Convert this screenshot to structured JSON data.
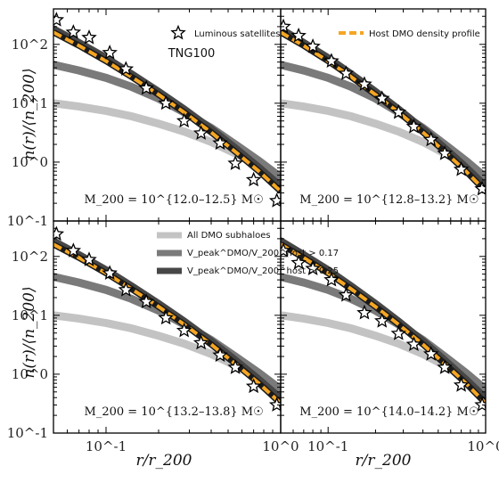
{
  "chart_data": {
    "type": "line",
    "x_scale": "log",
    "y_scale": "log",
    "xlim": [
      0.05,
      1.0
    ],
    "ylim": [
      0.1,
      400
    ],
    "xlabel": "r/r_200",
    "ylabel": "n(r)/⟨n_200⟩",
    "x_tick_labels": [
      "10^-1",
      "10^0"
    ],
    "y_tick_labels": [
      "10^-1",
      "10^0",
      "10^1",
      "10^2"
    ],
    "annotation_text": "TNG100",
    "legend_top_left": [
      {
        "name": "Luminous satellites",
        "style": "star-marker"
      }
    ],
    "legend_top_right": [
      {
        "name": "Host DMO density profile",
        "style": "orange-dashed"
      }
    ],
    "legend_mid": [
      {
        "name": "All DMO subhaloes",
        "style": "light-gray"
      },
      {
        "name": "V_peak^DMO/V_200^host > 0.17",
        "style": "mid-gray"
      },
      {
        "name": "V_peak^DMO/V_200^host > 0.25",
        "style": "dark-gray"
      }
    ],
    "colors": {
      "all_subhaloes": "#c3c3c3",
      "vpeak_017": "#7a7a7a",
      "vpeak_025": "#474747",
      "host_profile": "#f5a623",
      "host_outline": "#1a1a1a"
    },
    "panels": [
      {
        "mass_label": "M_200 = 10^{12.0–12.5} M☉",
        "mass_range": "12.0-12.5",
        "stars": {
          "x": [
            0.052,
            0.065,
            0.08,
            0.105,
            0.13,
            0.17,
            0.22,
            0.28,
            0.35,
            0.45,
            0.55,
            0.7,
            0.95
          ],
          "y": [
            260,
            160,
            130,
            72,
            38,
            18,
            10,
            5,
            3.1,
            2.1,
            0.95,
            0.5,
            0.22
          ]
        }
      },
      {
        "mass_label": "M_200 = 10^{12.8–13.2} M☉",
        "mass_range": "12.8-13.2",
        "stars": {
          "x": [
            0.052,
            0.065,
            0.08,
            0.105,
            0.13,
            0.17,
            0.22,
            0.28,
            0.35,
            0.45,
            0.55,
            0.7,
            0.95
          ],
          "y": [
            200,
            140,
            92,
            52,
            32,
            21,
            12,
            7,
            4,
            2.4,
            1.4,
            0.75,
            0.35
          ]
        }
      },
      {
        "mass_label": "M_200 = 10^{13.2–13.8} M☉",
        "mass_range": "13.2-13.8",
        "stars": {
          "x": [
            0.052,
            0.065,
            0.08,
            0.105,
            0.13,
            0.17,
            0.22,
            0.28,
            0.35,
            0.45,
            0.55,
            0.7,
            0.95
          ],
          "y": [
            240,
            125,
            88,
            52,
            27,
            17,
            9,
            5.5,
            3.4,
            2.1,
            1.3,
            0.62,
            0.3
          ]
        }
      },
      {
        "mass_label": "M_200 = 10^{14.0–14.2} M☉",
        "mass_range": "14.0-14.2",
        "stars": {
          "x": [
            0.052,
            0.065,
            0.08,
            0.105,
            0.13,
            0.17,
            0.22,
            0.28,
            0.35,
            0.45,
            0.55,
            0.7,
            0.95
          ],
          "y": [
            125,
            78,
            62,
            40,
            22,
            11,
            8,
            4.9,
            3.2,
            2.2,
            1.3,
            0.65,
            0.3
          ]
        }
      }
    ],
    "model_curves": {
      "x": [
        0.05,
        0.07,
        0.1,
        0.14,
        0.2,
        0.28,
        0.4,
        0.55,
        0.75,
        1.0
      ],
      "host_profile_y": [
        160,
        95,
        52,
        28,
        14,
        7,
        3.2,
        1.5,
        0.7,
        0.32
      ],
      "vpeak_025_y": [
        180,
        105,
        58,
        31,
        15.5,
        7.8,
        3.6,
        1.7,
        0.8,
        0.38
      ],
      "vpeak_017_y": [
        45,
        36,
        27,
        19,
        12,
        7,
        3.8,
        2.0,
        1.05,
        0.55
      ],
      "all_subhaloes_y": [
        10,
        8.8,
        7.4,
        6.0,
        4.5,
        3.3,
        2.2,
        1.4,
        0.9,
        0.55
      ]
    }
  }
}
